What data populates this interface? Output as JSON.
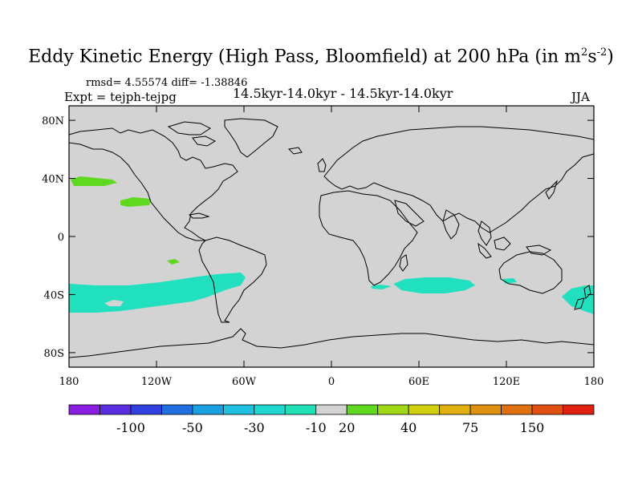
{
  "title": {
    "main": "Eddy Kinetic Energy (High Pass, Bloomfield) at 200 hPa (in m",
    "sup1": "2",
    "mid": "s",
    "sup2": "-2",
    "end": ")"
  },
  "stats": "rmsd= 4.55574 diff= -1.38846",
  "expt": "Expt = tejph-tejpg",
  "period": "14.5kyr-14.0kyr - 14.5kyr-14.0kyr",
  "season": "JJA",
  "map": {
    "background_color": "#d3d3d3",
    "lat_labels": [
      "80N",
      "40N",
      "0",
      "40S",
      "80S"
    ],
    "lat_values": [
      80,
      40,
      0,
      -40,
      -80
    ],
    "lon_labels": [
      "180",
      "120W",
      "60W",
      "0",
      "60E",
      "120E",
      "180"
    ],
    "lon_values": [
      -180,
      -120,
      -60,
      0,
      60,
      120,
      180
    ],
    "lat_range": [
      -90,
      90
    ],
    "lon_range": [
      -180,
      180
    ]
  },
  "colorbar": {
    "colors": [
      "#8a1ee0",
      "#5a2de0",
      "#3040e0",
      "#2070e0",
      "#1aa0e0",
      "#20c0e0",
      "#20d8d0",
      "#20e0b8",
      "#d3d3d3",
      "#60d820",
      "#a0d818",
      "#d0d010",
      "#e0b010",
      "#e09010",
      "#e07010",
      "#e05010",
      "#e02010"
    ],
    "labels": [
      "-100",
      "-50",
      "-30",
      "-10",
      "20",
      "40",
      "75",
      "150"
    ]
  }
}
